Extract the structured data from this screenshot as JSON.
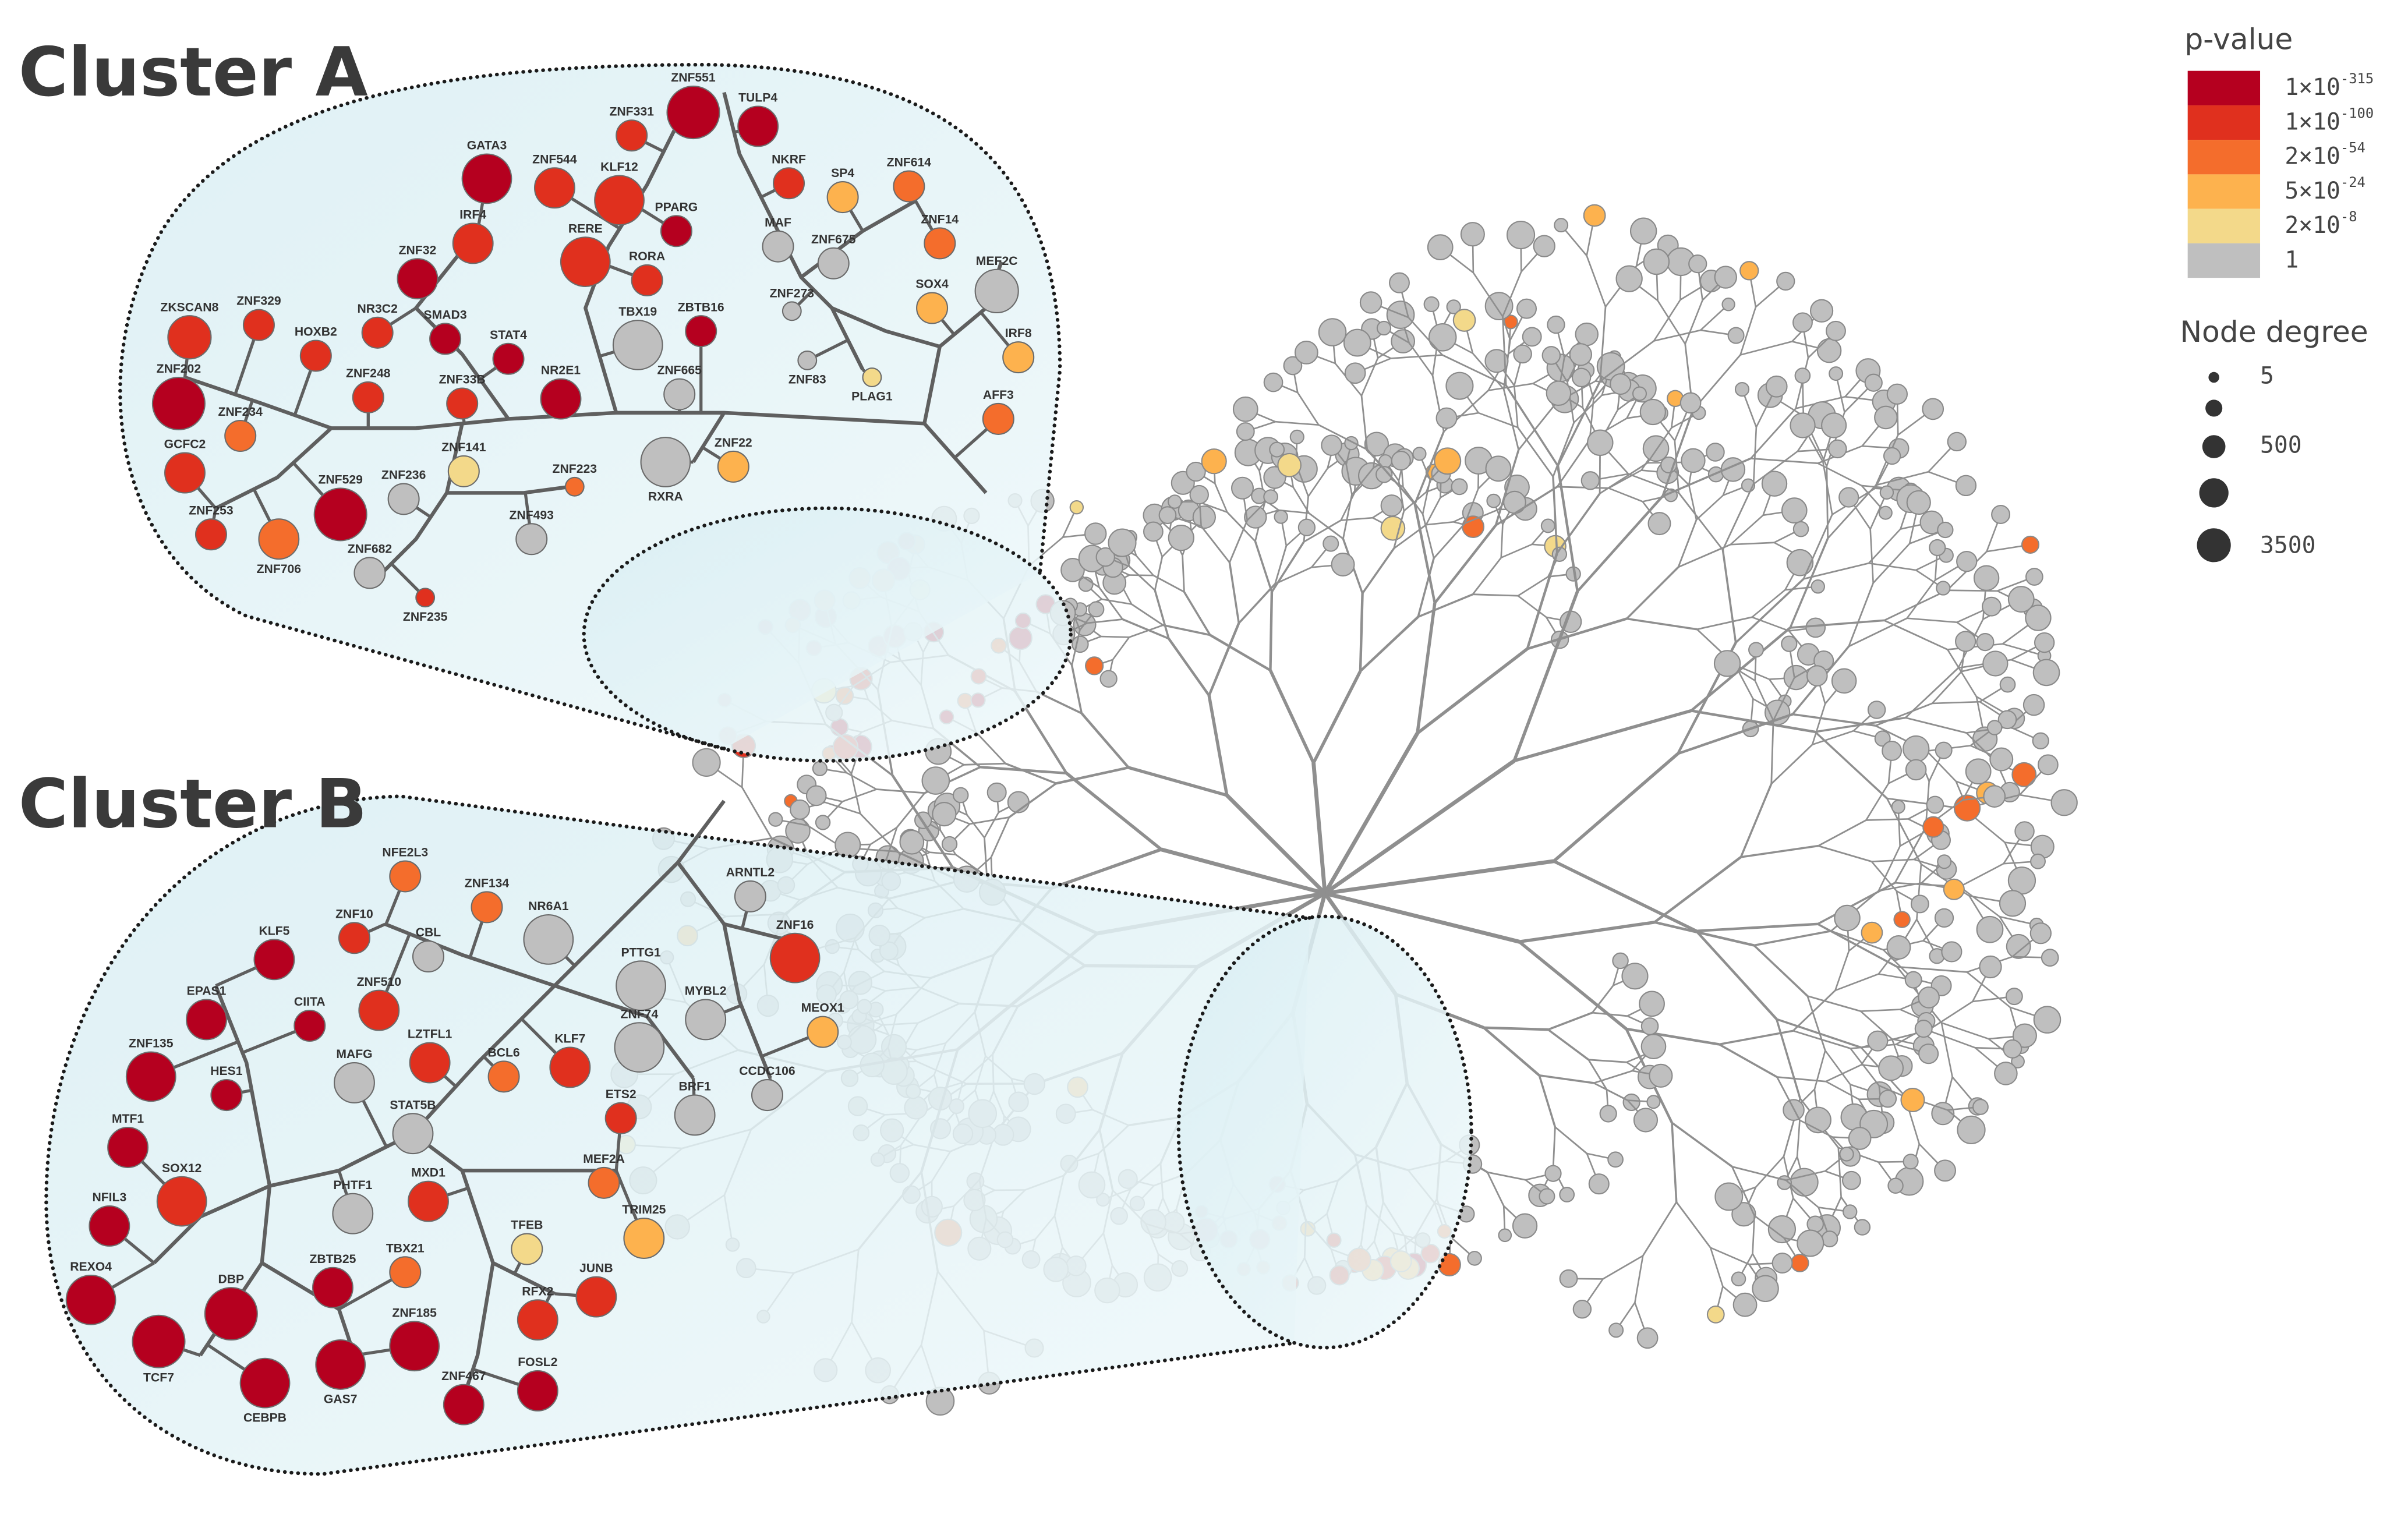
{
  "clusters": [
    {
      "title": "Cluster A",
      "nodes": [
        "ZNF551",
        "ZNF331",
        "TULP4",
        "GATA3",
        "ZNF544",
        "KLF12",
        "NKRF",
        "SP4",
        "ZNF614",
        "PPARG",
        "MAF",
        "ZNF675",
        "ZNF14",
        "IRF4",
        "RERE",
        "RORA",
        "ZNF32",
        "MEF2C",
        "SOX4",
        "ZNF273",
        "ZBTB16",
        "ZNF329",
        "NR3C2",
        "SMAD3",
        "STAT4",
        "TBX19",
        "ZKSCAN8",
        "HOXB2",
        "IRF8",
        "ZNF202",
        "ZNF248",
        "ZNF33B",
        "NR2E1",
        "ZNF665",
        "ZNF83",
        "PLAG1",
        "AFF3",
        "ZNF234",
        "GCFC2",
        "ZNF141",
        "ZNF236",
        "ZNF223",
        "RXRA",
        "ZNF22",
        "ZNF253",
        "ZNF529",
        "ZNF493",
        "ZNF706",
        "ZNF682",
        "ZNF235"
      ]
    },
    {
      "title": "Cluster B",
      "nodes": [
        "NFE2L3",
        "ZNF134",
        "NR6A1",
        "ARNTL2",
        "ZNF10",
        "CBL",
        "ZNF16",
        "KLF5",
        "PTTG1",
        "EPAS1",
        "CIITA",
        "ZNF510",
        "MYBL2",
        "MEOX1",
        "ZNF135",
        "LZTFL1",
        "BCL6",
        "KLF7",
        "MAFG",
        "ZNF74",
        "BRF1",
        "CCDC106",
        "HES1",
        "ETS2",
        "MTF1",
        "STAT5B",
        "SOX12",
        "MEF2A",
        "MXD1",
        "PHTF1",
        "NFIL3",
        "TRIM25",
        "TFEB",
        "ZBTB25",
        "TBX21",
        "REXO4",
        "DBP",
        "JUNB",
        "RFX2",
        "ZNF185",
        "TCF7",
        "GAS7",
        "CEBPB",
        "ZNF467",
        "FOSL2"
      ]
    }
  ],
  "legend": {
    "p_value": {
      "title": "p-value",
      "items": [
        {
          "color": "#b5001f",
          "base": "1×10",
          "exponent": "-315"
        },
        {
          "color": "#e0301e",
          "base": "1×10",
          "exponent": "-100"
        },
        {
          "color": "#f46d2c",
          "base": "2×10",
          "exponent": "-54"
        },
        {
          "color": "#fdb24e",
          "base": "5×10",
          "exponent": "-24"
        },
        {
          "color": "#f3d98a",
          "base": "2×10",
          "exponent": "-8"
        },
        {
          "color": "#bfbfbf",
          "label": "1"
        }
      ]
    },
    "node_degree": {
      "title": "Node degree",
      "labels": [
        5,
        500,
        3500
      ]
    }
  }
}
